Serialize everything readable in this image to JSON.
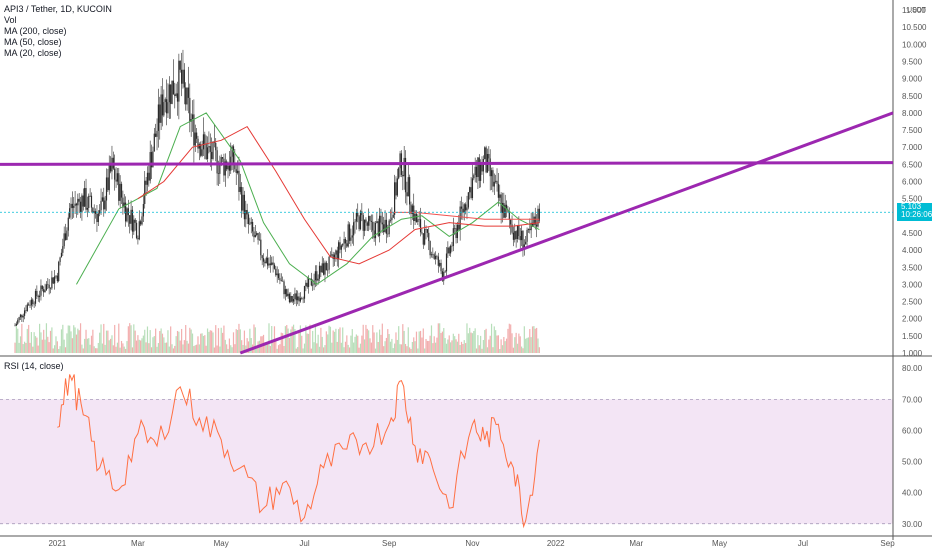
{
  "header": {
    "symbol_line": "API3 / Tether, 1D, KUCOIN",
    "indicators": [
      "Vol",
      "MA (200, close)",
      "MA (50, close)",
      "MA (20, close)"
    ]
  },
  "rsi_panel": {
    "label": "RSI (14, close)"
  },
  "price_tag": {
    "price": "5.103",
    "countdown": "10:26:06"
  },
  "colors": {
    "background": "#ffffff",
    "candle": "#2a2a2a",
    "ma200": "#ef5350",
    "ma50": "#e53935",
    "ma20": "#4caf50",
    "trendline": "#9c27b0",
    "price_line": "#00bcd4",
    "rsi_line": "#ff7043",
    "rsi_band": "#f3e5f5",
    "volume_up": "#a5d6a7",
    "volume_down": "#ef9a9a"
  },
  "chart_data": [
    {
      "type": "candlestick",
      "title": "API3 / Tether, 1D, KUCOIN",
      "y_axis_unit": "USDT",
      "y_ticks": [
        "1.000",
        "1.500",
        "2.000",
        "2.500",
        "3.000",
        "3.500",
        "4.000",
        "4.500",
        "5.000",
        "5.500",
        "6.000",
        "6.500",
        "7.000",
        "7.500",
        "8.000",
        "8.500",
        "9.000",
        "9.500",
        "10.000",
        "10.500",
        "11.000"
      ],
      "ylim": [
        1.0,
        11.0
      ],
      "x_ticks": [
        "2021",
        "Mar",
        "May",
        "Jul",
        "Sep",
        "Nov",
        "2022",
        "Mar",
        "May",
        "Jul",
        "Sep"
      ],
      "xlim": [
        "2020-11-20",
        "2022-09-05"
      ],
      "last_price": 5.103,
      "close_series": {
        "dates": [
          "2020-12-01",
          "2020-12-10",
          "2020-12-20",
          "2021-01-01",
          "2021-01-10",
          "2021-01-20",
          "2021-02-01",
          "2021-02-10",
          "2021-02-20",
          "2021-03-01",
          "2021-03-10",
          "2021-03-20",
          "2021-04-01",
          "2021-04-10",
          "2021-04-20",
          "2021-05-01",
          "2021-05-10",
          "2021-05-20",
          "2021-06-01",
          "2021-06-10",
          "2021-06-20",
          "2021-07-01",
          "2021-07-10",
          "2021-07-20",
          "2021-08-01",
          "2021-08-10",
          "2021-08-20",
          "2021-09-01",
          "2021-09-10",
          "2021-09-20",
          "2021-10-01",
          "2021-10-10",
          "2021-10-20",
          "2021-11-01",
          "2021-11-10",
          "2021-11-20",
          "2021-12-01",
          "2021-12-10",
          "2021-12-20"
        ],
        "close": [
          1.8,
          2.4,
          2.8,
          3.3,
          5.2,
          5.5,
          5.0,
          6.4,
          5.2,
          4.6,
          6.6,
          8.5,
          9.0,
          7.6,
          6.9,
          6.5,
          6.6,
          4.8,
          3.8,
          3.4,
          2.5,
          2.8,
          3.3,
          3.6,
          4.4,
          4.9,
          4.6,
          4.8,
          6.6,
          4.9,
          4.1,
          3.3,
          4.6,
          6.0,
          6.6,
          5.5,
          4.6,
          4.2,
          5.1
        ]
      },
      "moving_averages": [
        {
          "name": "MA (20, close)",
          "dates": [
            "2021-01-15",
            "2021-02-15",
            "2021-03-15",
            "2021-04-01",
            "2021-04-20",
            "2021-05-15",
            "2021-06-01",
            "2021-06-20",
            "2021-07-10",
            "2021-08-01",
            "2021-08-20",
            "2021-09-10",
            "2021-09-25",
            "2021-10-15",
            "2021-11-01",
            "2021-11-20",
            "2021-12-05",
            "2021-12-20"
          ],
          "values": [
            3.0,
            5.2,
            5.8,
            7.6,
            8.0,
            6.6,
            4.8,
            3.6,
            3.0,
            3.6,
            4.4,
            4.9,
            5.0,
            4.4,
            4.8,
            5.4,
            4.9,
            4.6
          ]
        },
        {
          "name": "MA (50, close)",
          "dates": [
            "2021-03-01",
            "2021-03-20",
            "2021-04-10",
            "2021-05-01",
            "2021-05-20",
            "2021-06-10",
            "2021-07-01",
            "2021-07-20",
            "2021-08-10",
            "2021-09-01",
            "2021-09-20",
            "2021-10-15",
            "2021-11-10",
            "2021-12-01",
            "2021-12-20"
          ],
          "values": [
            5.5,
            6.0,
            7.0,
            7.2,
            7.6,
            6.3,
            4.9,
            3.8,
            3.6,
            4.0,
            4.6,
            4.8,
            4.7,
            4.7,
            4.8
          ]
        },
        {
          "name": "MA (200, close)",
          "dates": [
            "2021-09-01",
            "2021-09-20",
            "2021-10-15",
            "2021-11-10",
            "2021-12-01",
            "2021-12-20"
          ],
          "values": [
            5.1,
            5.1,
            5.0,
            4.9,
            4.9,
            4.9
          ]
        }
      ],
      "trendlines": [
        {
          "name": "horizontal resistance",
          "from": {
            "date": "2020-11-20",
            "value": 6.5
          },
          "to": {
            "date": "2022-09-05",
            "value": 6.55
          }
        },
        {
          "name": "ascending support",
          "from": {
            "date": "2021-05-15",
            "value": 1.0
          },
          "to": {
            "date": "2022-09-05",
            "value": 8.0
          }
        }
      ]
    },
    {
      "type": "line",
      "title": "RSI (14, close)",
      "y_ticks": [
        "30.00",
        "40.00",
        "50.00",
        "60.00",
        "70.00",
        "80.00"
      ],
      "ylim": [
        28,
        82
      ],
      "band": [
        30,
        70
      ],
      "dates": [
        "2021-01-01",
        "2021-01-10",
        "2021-01-20",
        "2021-02-01",
        "2021-02-15",
        "2021-03-01",
        "2021-03-15",
        "2021-04-01",
        "2021-04-15",
        "2021-05-01",
        "2021-05-15",
        "2021-06-01",
        "2021-06-15",
        "2021-07-01",
        "2021-07-15",
        "2021-08-01",
        "2021-08-15",
        "2021-09-01",
        "2021-09-10",
        "2021-09-20",
        "2021-10-01",
        "2021-10-15",
        "2021-11-01",
        "2021-11-10",
        "2021-11-20",
        "2021-12-01",
        "2021-12-10",
        "2021-12-20"
      ],
      "values": [
        61,
        78,
        65,
        48,
        41,
        59,
        55,
        74,
        64,
        57,
        48,
        35,
        43,
        32,
        48,
        54,
        56,
        62,
        76,
        55,
        51,
        35,
        62,
        57,
        62,
        48,
        31,
        57
      ]
    }
  ]
}
